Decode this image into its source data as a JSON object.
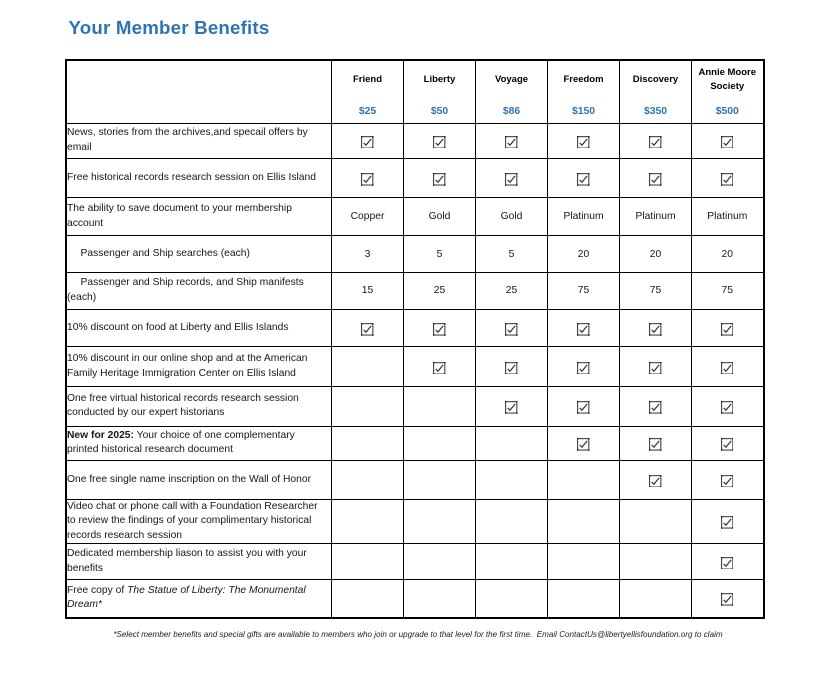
{
  "title": "Your Member Benefits",
  "accent_blue": "#2E74B5",
  "checkbox_color": "#333333",
  "table": {
    "columns": [
      {
        "name": "Friend",
        "price": "$25"
      },
      {
        "name": "Liberty",
        "price": "$50"
      },
      {
        "name": "Voyage",
        "price": "$86"
      },
      {
        "name": "Freedom",
        "price": "$150"
      },
      {
        "name": "Discovery",
        "price": "$350"
      },
      {
        "name": "Annie Moore\nSociety",
        "price": "$500"
      }
    ],
    "rows": [
      {
        "parts": [
          {
            "t": "News, stories from the archives,and specail offers by\nemail"
          }
        ],
        "cells": [
          true,
          true,
          true,
          true,
          true,
          true
        ]
      },
      {
        "parts": [
          {
            "t": "Free historical records research session on Ellis Island"
          }
        ],
        "cells": [
          true,
          true,
          true,
          true,
          true,
          true
        ]
      },
      {
        "parts": [
          {
            "t": "The ability to save document to your membership\naccount"
          }
        ],
        "cells": [
          "Copper",
          "Gold",
          "Gold",
          "Platinum",
          "Platinum",
          "Platinum"
        ]
      },
      {
        "indent": true,
        "parts": [
          {
            "t": "Passenger and Ship searches (each)"
          }
        ],
        "cells": [
          "3",
          "5",
          "5",
          "20",
          "20",
          "20"
        ]
      },
      {
        "indent": true,
        "parts": [
          {
            "t": "Passenger and Ship records, and Ship manifests\n(each)"
          }
        ],
        "cells": [
          "15",
          "25",
          "25",
          "75",
          "75",
          "75"
        ]
      },
      {
        "parts": [
          {
            "t": "10% discount on food at Liberty and Ellis Islands"
          }
        ],
        "cells": [
          true,
          true,
          true,
          true,
          true,
          true
        ]
      },
      {
        "parts": [
          {
            "t": "10% discount in our online shop and at the American\nFamily Heritage Immigration Center on Ellis Island"
          }
        ],
        "cells": [
          "",
          true,
          true,
          true,
          true,
          true
        ]
      },
      {
        "parts": [
          {
            "t": "One free virtual historical records research session\nconducted by our expert historians"
          }
        ],
        "cells": [
          "",
          "",
          true,
          true,
          true,
          true
        ]
      },
      {
        "parts": [
          {
            "t": "New for 2025:",
            "b": true
          },
          {
            "t": " Your choice of one complementary\nprinted historical research document"
          }
        ],
        "cells": [
          "",
          "",
          "",
          true,
          true,
          true
        ]
      },
      {
        "parts": [
          {
            "t": "One free single name inscription on the Wall of Honor"
          }
        ],
        "cells": [
          "",
          "",
          "",
          "",
          true,
          true
        ]
      },
      {
        "parts": [
          {
            "t": "Video chat or phone call with a Foundation Researcher\nto review the findings of your complimentary historical\nrecords research session"
          }
        ],
        "cells": [
          "",
          "",
          "",
          "",
          "",
          true
        ]
      },
      {
        "parts": [
          {
            "t": "Dedicated membership liason to assist you with your\nbenefits"
          }
        ],
        "cells": [
          "",
          "",
          "",
          "",
          "",
          true
        ]
      },
      {
        "parts": [
          {
            "t": "Free copy of "
          },
          {
            "t": "The Statue of Liberty: The Monumental\nDream*",
            "i": true
          }
        ],
        "cells": [
          "",
          "",
          "",
          "",
          "",
          true
        ]
      }
    ]
  },
  "footnote": "*Select member benefits and special gifts are available to members who join or upgrade to that level for the first time.  Email ContactUs@libertyellisfoundation.org to claim"
}
